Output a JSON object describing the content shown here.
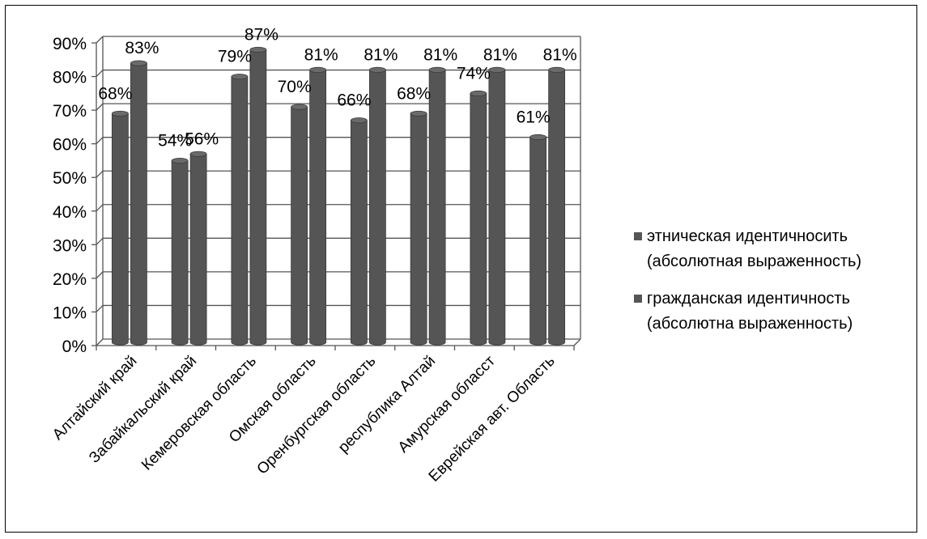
{
  "chart_data": {
    "type": "bar",
    "title": "",
    "xlabel": "",
    "ylabel": "",
    "ylim": [
      0,
      90
    ],
    "yticks": [
      "0%",
      "10%",
      "20%",
      "30%",
      "40%",
      "50%",
      "60%",
      "70%",
      "80%",
      "90%"
    ],
    "categories": [
      "Алтайский край",
      "Забайкальский край",
      "Кемеровская область",
      "Омская область",
      "Оренбургская область",
      "республика Алтай",
      "Амурская обласст",
      "Еврейская авт. Область"
    ],
    "series": [
      {
        "name": "этническая идентичносить (абсолютная выраженность)",
        "name_lines": [
          "этническая идентичносить",
          "(абсолютная выраженность)"
        ],
        "values": [
          68,
          54,
          79,
          70,
          66,
          68,
          74,
          61
        ],
        "labels": [
          "68%",
          "54%",
          "79%",
          "70%",
          "66%",
          "68%",
          "74%",
          "61%"
        ]
      },
      {
        "name": "гражданская идентичность (абсолютна выраженность)",
        "name_lines": [
          "гражданская идентичность",
          "(абсолютна выраженность)"
        ],
        "values": [
          83,
          56,
          87,
          81,
          81,
          81,
          81,
          81
        ],
        "labels": [
          "83%",
          "56%",
          "87%",
          "81%",
          "81%",
          "81%",
          "81%",
          "81%"
        ]
      }
    ],
    "colors": {
      "bar_body": "#555555",
      "bar_top": "#6a6a6a",
      "grid": "#555555",
      "wall": "#ffffff"
    },
    "grid": true,
    "style": "3d-cylinder",
    "legend_position": "right"
  }
}
